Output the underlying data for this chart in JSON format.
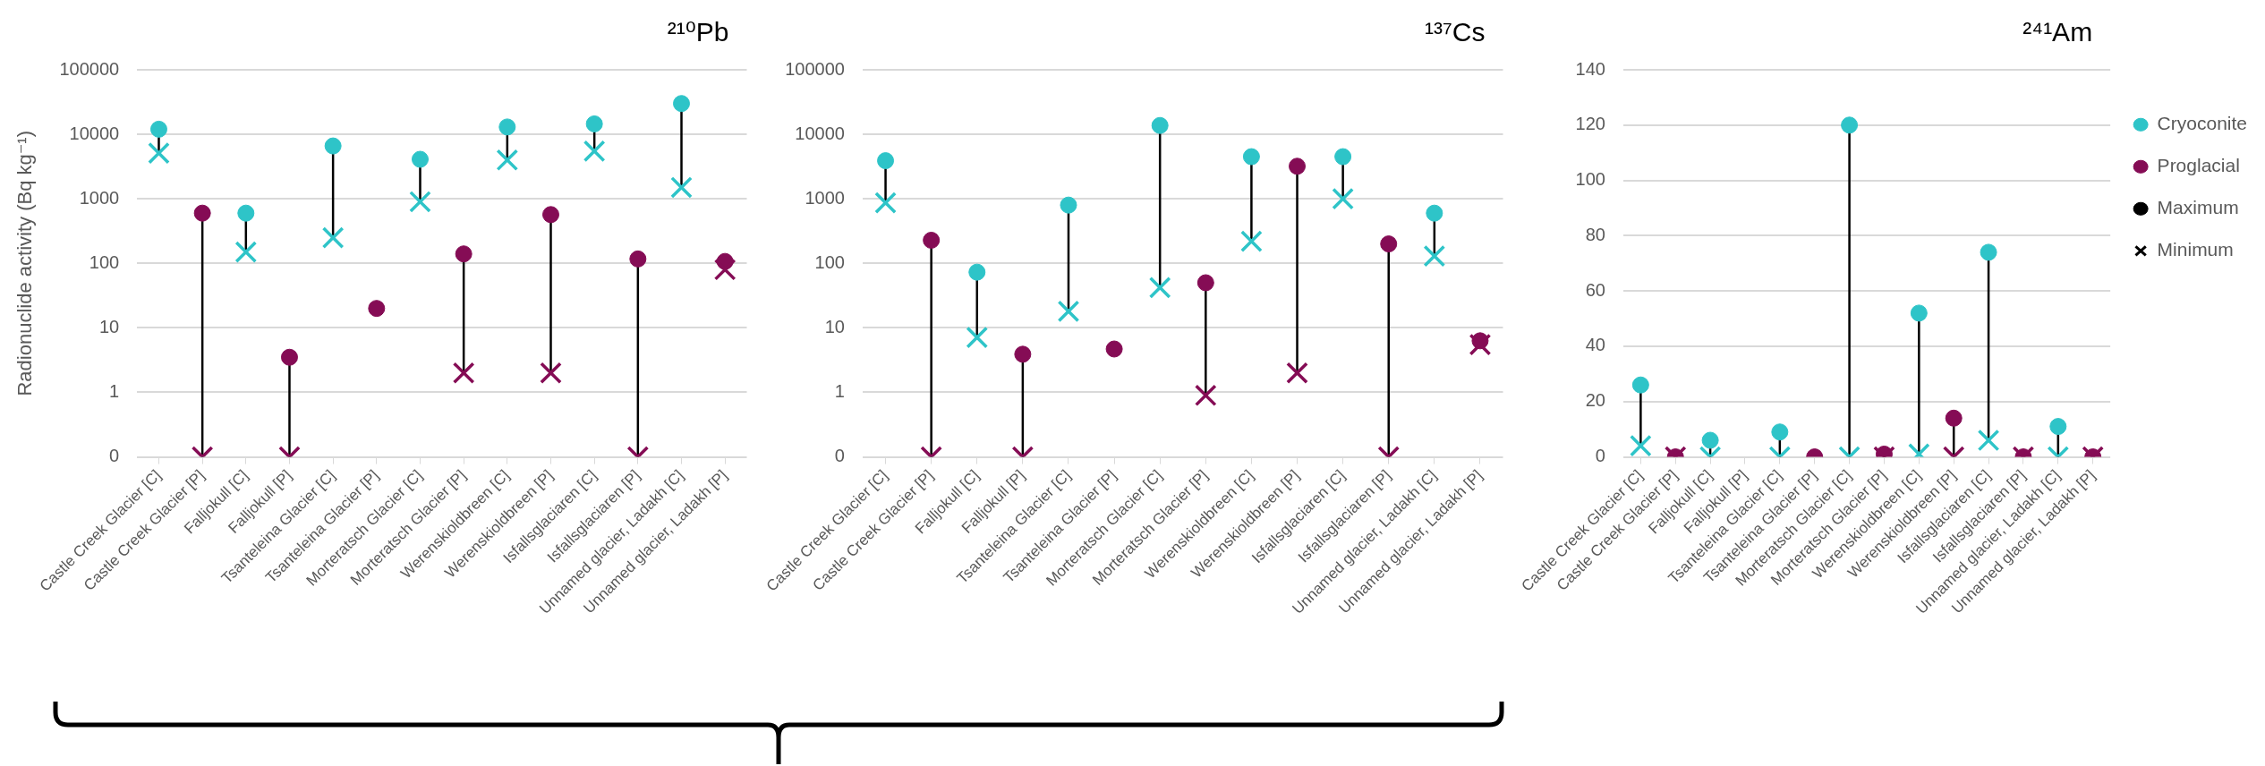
{
  "chart_data": [
    {
      "type": "scatter",
      "title": "²¹⁰Pb",
      "ylabel": "Radionuclide activity (Bq kg⁻¹)",
      "categories": [
        "Castle Creek Glacier [C]",
        "Castle Creek Glacier [P]",
        "Falljokull [C]",
        "Falljokull [P]",
        "Tsanteleina Glacier [C]",
        "Tsanteleina Glacier [P]",
        "Morteratsch Glacier [C]",
        "Morteratsch Glacier [P]",
        "Werenskioldbreen [C]",
        "Werenskioldbreen [P]",
        "Isfallsglaciaren [C]",
        "Isfallsglaciaren [P]",
        "Unnamed glacier, Ladakh [C]",
        "Unnamed glacier, Ladakh [P]"
      ],
      "log": true,
      "ylim": [
        0.1,
        100000
      ],
      "yticks": [
        {
          "value": 0.1,
          "label": "0"
        },
        1,
        10,
        100,
        1000,
        10000,
        100000
      ],
      "grid": "y",
      "legend": false,
      "series": [
        {
          "color": "#2ec4c8",
          "marker": "circle",
          "values": [
            12000,
            null,
            600,
            null,
            6600,
            null,
            4100,
            null,
            13000,
            null,
            14500,
            null,
            30000,
            null
          ]
        },
        {
          "color": "#850c55",
          "marker": "circle",
          "values": [
            null,
            600,
            null,
            3.5,
            null,
            20,
            null,
            140,
            null,
            570,
            null,
            117,
            null,
            107
          ]
        },
        {
          "color": "#2ec4c8",
          "marker": "cross",
          "values": [
            5100,
            null,
            150,
            null,
            250,
            null,
            900,
            null,
            4000,
            null,
            5500,
            null,
            1500,
            null
          ]
        },
        {
          "color": "#850c55",
          "marker": "cross",
          "values": [
            null,
            0.1,
            null,
            0.1,
            null,
            null,
            null,
            2,
            null,
            2,
            null,
            0.1,
            null,
            80
          ]
        }
      ]
    },
    {
      "type": "scatter",
      "title": "¹³⁷Cs",
      "categories": [
        "Castle Creek Glacier [C]",
        "Castle Creek Glacier [P]",
        "Falljokull [C]",
        "Falljokull [P]",
        "Tsanteleina Glacier [C]",
        "Tsanteleina Glacier [P]",
        "Morteratsch Glacier [C]",
        "Morteratsch Glacier [P]",
        "Werenskioldbreen [C]",
        "Werenskioldbreen [P]",
        "Isfallsglaciaren [C]",
        "Isfallsglaciaren [P]",
        "Unnamed glacier, Ladakh [C]",
        "Unnamed glacier, Ladakh [P]"
      ],
      "log": true,
      "ylim": [
        0.1,
        100000
      ],
      "yticks": [
        {
          "value": 0.1,
          "label": "0"
        },
        1,
        10,
        100,
        1000,
        10000,
        100000
      ],
      "grid": "y",
      "legend": false,
      "series": [
        {
          "color": "#2ec4c8",
          "marker": "circle",
          "values": [
            3900,
            null,
            73,
            null,
            800,
            null,
            13700,
            null,
            4500,
            null,
            4500,
            null,
            600,
            null
          ]
        },
        {
          "color": "#850c55",
          "marker": "circle",
          "values": [
            null,
            228,
            null,
            3.9,
            null,
            4.7,
            null,
            50,
            null,
            3200,
            null,
            200,
            null,
            6.3
          ]
        },
        {
          "color": "#2ec4c8",
          "marker": "cross",
          "values": [
            870,
            null,
            7.1,
            null,
            18,
            null,
            42,
            null,
            220,
            null,
            1000,
            null,
            130,
            null
          ]
        },
        {
          "color": "#850c55",
          "marker": "cross",
          "values": [
            null,
            0.1,
            null,
            0.1,
            null,
            null,
            null,
            0.9,
            null,
            2,
            null,
            0.1,
            null,
            5.5
          ]
        }
      ]
    },
    {
      "type": "scatter",
      "title": "²⁴¹Am",
      "categories": [
        "Castle Creek Glacier [C]",
        "Castle Creek Glacier [P]",
        "Falljokull [C]",
        "Falljokull [P]",
        "Tsanteleina Glacier [C]",
        "Tsanteleina Glacier [P]",
        "Morteratsch Glacier [C]",
        "Morteratsch Glacier [P]",
        "Werenskioldbreen [C]",
        "Werenskioldbreen [P]",
        "Isfallsglaciaren [C]",
        "Isfallsglaciaren [P]",
        "Unnamed glacier, Ladakh [C]",
        "Unnamed glacier, Ladakh [P]"
      ],
      "ylim": [
        0,
        140
      ],
      "yticks": [
        0,
        20,
        40,
        60,
        80,
        100,
        120,
        140
      ],
      "grid": "y",
      "legend": "top right",
      "series": [
        {
          "name": "Cryoconite",
          "color": "#2ec4c8",
          "marker": "circle",
          "values": [
            26,
            null,
            6,
            null,
            9,
            null,
            120,
            null,
            52,
            null,
            74,
            null,
            11,
            null
          ]
        },
        {
          "name": "Proglacial",
          "color": "#850c55",
          "marker": "circle",
          "values": [
            null,
            0,
            null,
            null,
            null,
            0,
            null,
            1,
            null,
            14,
            null,
            0,
            null,
            0
          ]
        },
        {
          "color": "#2ec4c8",
          "marker": "cross",
          "values": [
            4,
            null,
            0,
            null,
            0,
            null,
            0,
            null,
            1,
            null,
            6,
            null,
            0,
            null
          ]
        },
        {
          "color": "#850c55",
          "marker": "cross",
          "values": [
            null,
            0,
            null,
            null,
            null,
            null,
            null,
            0,
            null,
            0,
            null,
            0,
            null,
            0
          ]
        },
        {
          "name": "Maximum",
          "color": "#000000",
          "marker": "circle",
          "values": [
            null,
            null,
            null,
            null,
            null,
            null,
            null,
            null,
            null,
            null,
            null,
            null,
            null,
            null
          ]
        },
        {
          "name": "Minimum",
          "color": "#000000",
          "marker": "cross",
          "values": [
            null,
            null,
            null,
            null,
            null,
            null,
            null,
            null,
            null,
            null,
            null,
            null,
            null,
            null
          ]
        }
      ]
    }
  ]
}
